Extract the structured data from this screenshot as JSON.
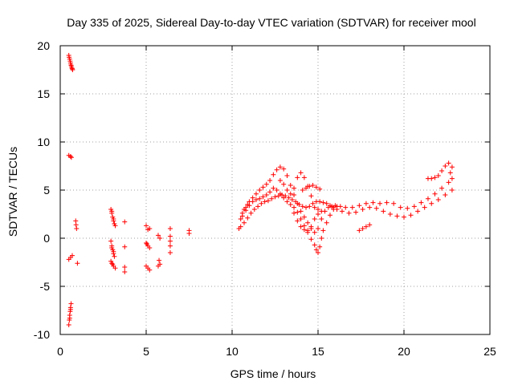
{
  "chart_data": {
    "type": "scatter",
    "title": "Day 335 of 2025, Sidereal Day-to-day VTEC variation (SDTVAR) for receiver mool",
    "xlabel": "GPS time / hours",
    "ylabel": "SDTVAR / TECUs",
    "xlim": [
      0,
      25
    ],
    "ylim": [
      -10,
      20
    ],
    "xticks": [
      0,
      5,
      10,
      15,
      20,
      25
    ],
    "yticks": [
      -10,
      -5,
      0,
      5,
      10,
      15,
      20
    ],
    "grid": true,
    "marker": "plus",
    "color": "#ff0000",
    "series": [
      {
        "name": "SDTVAR",
        "points": [
          [
            0.5,
            19.0
          ],
          [
            0.55,
            18.6
          ],
          [
            0.6,
            18.2
          ],
          [
            0.65,
            17.9
          ],
          [
            0.7,
            17.6
          ],
          [
            0.52,
            18.8
          ],
          [
            0.58,
            18.4
          ],
          [
            0.62,
            18.0
          ],
          [
            0.67,
            17.7
          ],
          [
            0.72,
            17.5
          ],
          [
            0.5,
            8.6
          ],
          [
            0.6,
            8.5
          ],
          [
            0.65,
            8.4
          ],
          [
            0.5,
            -2.2
          ],
          [
            0.6,
            -2.0
          ],
          [
            0.7,
            -1.8
          ],
          [
            0.5,
            -9.0
          ],
          [
            0.53,
            -8.5
          ],
          [
            0.55,
            -8.0
          ],
          [
            0.58,
            -7.6
          ],
          [
            0.6,
            -7.2
          ],
          [
            0.63,
            -6.8
          ],
          [
            0.55,
            -8.3
          ],
          [
            0.6,
            -7.4
          ],
          [
            0.9,
            1.8
          ],
          [
            0.92,
            1.4
          ],
          [
            0.95,
            1.0
          ],
          [
            1.0,
            -2.6
          ],
          [
            2.95,
            3.0
          ],
          [
            3.0,
            2.6
          ],
          [
            3.05,
            2.2
          ],
          [
            3.1,
            1.8
          ],
          [
            3.15,
            1.5
          ],
          [
            3.2,
            1.3
          ],
          [
            3.0,
            2.8
          ],
          [
            3.1,
            2.0
          ],
          [
            2.95,
            -0.3
          ],
          [
            3.0,
            -0.8
          ],
          [
            3.05,
            -1.2
          ],
          [
            3.1,
            -1.6
          ],
          [
            3.15,
            -1.9
          ],
          [
            3.0,
            -1.0
          ],
          [
            3.1,
            -1.4
          ],
          [
            2.95,
            -2.4
          ],
          [
            3.0,
            -2.6
          ],
          [
            3.1,
            -2.9
          ],
          [
            3.2,
            -3.1
          ],
          [
            3.05,
            -2.7
          ],
          [
            3.75,
            1.7
          ],
          [
            3.75,
            -0.9
          ],
          [
            3.75,
            -3.0
          ],
          [
            3.75,
            -3.5
          ],
          [
            5.0,
            1.3
          ],
          [
            5.1,
            0.9
          ],
          [
            5.2,
            1.0
          ],
          [
            5.0,
            -0.5
          ],
          [
            5.1,
            -0.8
          ],
          [
            5.2,
            -1.0
          ],
          [
            5.05,
            -0.6
          ],
          [
            5.0,
            -2.9
          ],
          [
            5.1,
            -3.1
          ],
          [
            5.2,
            -3.3
          ],
          [
            5.7,
            0.3
          ],
          [
            5.8,
            0.0
          ],
          [
            5.75,
            -2.3
          ],
          [
            5.8,
            -2.7
          ],
          [
            5.7,
            -2.9
          ],
          [
            6.4,
            1.0
          ],
          [
            6.4,
            0.2
          ],
          [
            6.4,
            -0.3
          ],
          [
            6.4,
            -0.8
          ],
          [
            6.4,
            -1.5
          ],
          [
            7.5,
            0.8
          ],
          [
            7.5,
            0.5
          ],
          [
            10.4,
            1.0
          ],
          [
            10.5,
            2.0
          ],
          [
            10.6,
            2.6
          ],
          [
            10.7,
            3.0
          ],
          [
            10.8,
            3.2
          ],
          [
            10.9,
            3.5
          ],
          [
            11.0,
            3.8
          ],
          [
            11.2,
            4.2
          ],
          [
            11.4,
            4.6
          ],
          [
            11.6,
            5.0
          ],
          [
            11.8,
            5.3
          ],
          [
            12.0,
            5.6
          ],
          [
            12.2,
            6.0
          ],
          [
            12.4,
            6.6
          ],
          [
            12.6,
            7.1
          ],
          [
            12.8,
            7.4
          ],
          [
            13.0,
            7.2
          ],
          [
            13.2,
            6.5
          ],
          [
            13.4,
            5.5
          ],
          [
            13.6,
            4.5
          ],
          [
            13.8,
            3.6
          ],
          [
            14.0,
            2.8
          ],
          [
            14.2,
            2.2
          ],
          [
            14.4,
            1.6
          ],
          [
            14.6,
            1.0
          ],
          [
            14.8,
            0.6
          ],
          [
            15.0,
            1.0
          ],
          [
            15.2,
            2.0
          ],
          [
            15.4,
            2.8
          ],
          [
            15.6,
            3.2
          ],
          [
            15.8,
            3.3
          ],
          [
            16.0,
            3.4
          ],
          [
            16.3,
            3.3
          ],
          [
            16.6,
            3.2
          ],
          [
            17.0,
            3.2
          ],
          [
            17.4,
            3.4
          ],
          [
            17.8,
            3.6
          ],
          [
            18.2,
            3.7
          ],
          [
            18.6,
            3.6
          ],
          [
            19.0,
            3.7
          ],
          [
            19.4,
            3.6
          ],
          [
            19.8,
            3.2
          ],
          [
            20.2,
            3.1
          ],
          [
            20.6,
            3.3
          ],
          [
            21.0,
            3.7
          ],
          [
            21.4,
            4.1
          ],
          [
            21.8,
            4.6
          ],
          [
            22.2,
            5.2
          ],
          [
            22.6,
            5.8
          ],
          [
            22.8,
            6.2
          ],
          [
            10.5,
            1.2
          ],
          [
            10.7,
            1.6
          ],
          [
            10.9,
            2.1
          ],
          [
            11.1,
            2.6
          ],
          [
            11.3,
            3.0
          ],
          [
            11.5,
            3.3
          ],
          [
            11.7,
            3.6
          ],
          [
            11.9,
            3.8
          ],
          [
            12.1,
            3.9
          ],
          [
            12.3,
            4.1
          ],
          [
            12.5,
            4.3
          ],
          [
            12.7,
            4.4
          ],
          [
            12.9,
            4.5
          ],
          [
            13.1,
            4.4
          ],
          [
            13.3,
            4.2
          ],
          [
            13.5,
            4.0
          ],
          [
            13.7,
            3.8
          ],
          [
            13.9,
            3.5
          ],
          [
            14.1,
            3.3
          ],
          [
            14.3,
            3.2
          ],
          [
            14.5,
            3.3
          ],
          [
            14.7,
            3.6
          ],
          [
            14.9,
            3.8
          ],
          [
            15.1,
            3.8
          ],
          [
            15.3,
            3.7
          ],
          [
            15.5,
            3.6
          ],
          [
            15.7,
            3.4
          ],
          [
            15.9,
            3.2
          ],
          [
            16.1,
            3.0
          ],
          [
            16.4,
            2.8
          ],
          [
            16.8,
            2.6
          ],
          [
            17.2,
            2.7
          ],
          [
            17.6,
            3.0
          ],
          [
            18.0,
            3.2
          ],
          [
            18.4,
            3.1
          ],
          [
            18.8,
            2.8
          ],
          [
            19.2,
            2.5
          ],
          [
            19.6,
            2.3
          ],
          [
            20.0,
            2.2
          ],
          [
            20.4,
            2.4
          ],
          [
            20.8,
            2.8
          ],
          [
            21.2,
            3.2
          ],
          [
            21.6,
            3.6
          ],
          [
            22.0,
            4.0
          ],
          [
            22.4,
            4.5
          ],
          [
            22.8,
            5.0
          ],
          [
            10.6,
            2.3
          ],
          [
            10.8,
            2.9
          ],
          [
            11.0,
            3.4
          ],
          [
            11.2,
            3.8
          ],
          [
            11.4,
            4.0
          ],
          [
            11.6,
            4.1
          ],
          [
            11.8,
            4.3
          ],
          [
            12.0,
            4.5
          ],
          [
            12.2,
            4.8
          ],
          [
            12.4,
            5.2
          ],
          [
            12.6,
            5.0
          ],
          [
            12.8,
            4.6
          ],
          [
            13.0,
            4.2
          ],
          [
            13.2,
            3.8
          ],
          [
            13.4,
            3.5
          ],
          [
            13.6,
            3.2
          ],
          [
            13.8,
            2.7
          ],
          [
            14.0,
            2.0
          ],
          [
            14.2,
            1.3
          ],
          [
            14.4,
            0.6
          ],
          [
            14.6,
            -0.1
          ],
          [
            14.8,
            -0.7
          ],
          [
            14.9,
            -1.2
          ],
          [
            15.0,
            -1.5
          ],
          [
            15.1,
            -0.9
          ],
          [
            15.2,
            0.0
          ],
          [
            15.3,
            0.8
          ],
          [
            15.5,
            1.6
          ],
          [
            15.7,
            2.4
          ],
          [
            15.9,
            3.0
          ],
          [
            16.1,
            3.3
          ],
          [
            12.8,
            6.0
          ],
          [
            13.0,
            5.6
          ],
          [
            13.2,
            5.0
          ],
          [
            13.4,
            4.6
          ],
          [
            13.6,
            5.2
          ],
          [
            13.8,
            6.3
          ],
          [
            14.0,
            6.8
          ],
          [
            14.2,
            6.3
          ],
          [
            14.4,
            5.4
          ],
          [
            14.6,
            4.4
          ],
          [
            14.8,
            3.2
          ],
          [
            15.0,
            2.5
          ],
          [
            15.2,
            2.8
          ],
          [
            13.6,
            2.6
          ],
          [
            13.8,
            1.8
          ],
          [
            14.0,
            1.2
          ],
          [
            14.2,
            0.9
          ],
          [
            14.4,
            0.8
          ],
          [
            14.6,
            1.2
          ],
          [
            14.8,
            2.0
          ],
          [
            15.0,
            3.0
          ],
          [
            14.1,
            5.0
          ],
          [
            14.3,
            5.2
          ],
          [
            14.5,
            5.4
          ],
          [
            14.7,
            5.5
          ],
          [
            14.9,
            5.3
          ],
          [
            15.1,
            5.1
          ],
          [
            17.4,
            0.8
          ],
          [
            17.6,
            1.0
          ],
          [
            17.8,
            1.2
          ],
          [
            18.0,
            1.4
          ],
          [
            21.4,
            6.2
          ],
          [
            21.6,
            6.2
          ],
          [
            21.8,
            6.3
          ],
          [
            22.0,
            6.5
          ],
          [
            22.2,
            7.0
          ],
          [
            22.4,
            7.5
          ],
          [
            22.6,
            7.8
          ],
          [
            22.8,
            7.4
          ],
          [
            22.7,
            6.8
          ]
        ]
      }
    ]
  }
}
